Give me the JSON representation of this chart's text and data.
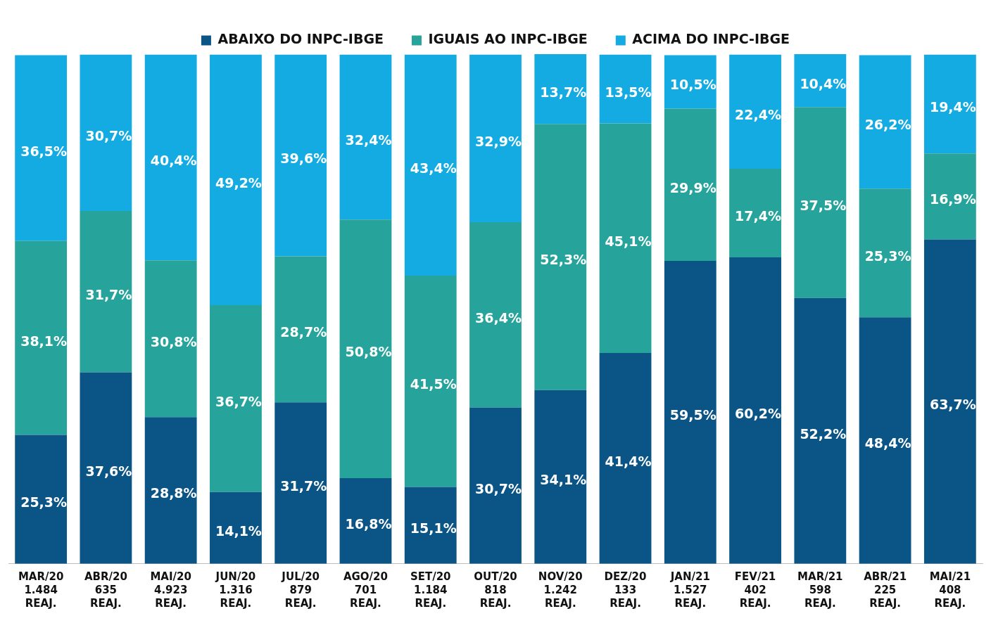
{
  "chart_data": {
    "type": "bar",
    "stacked": true,
    "legend": "top",
    "grid": false,
    "tick_labels": "x",
    "ylim": [
      0,
      100.1
    ],
    "categories": [
      "MAR/20\n1.484\nREAJ.",
      "ABR/20\n635\nREAJ.",
      "MAI/20\n4.923\nREAJ.",
      "JUN/20\n1.316\nREAJ.",
      "JUL/20\n879\nREAJ.",
      "AGO/20\n701\nREAJ.",
      "SET/20\n1.184\nREAJ.",
      "OUT/20\n818\nREAJ.",
      "NOV/20\n1.242\nREAJ.",
      "DEZ/20\n133\nREAJ.",
      "JAN/21\n1.527\nREAJ.",
      "FEV/21\n402\nREAJ.",
      "MAR/21\n598\nREAJ.",
      "ABR/21\n225\nREAJ.",
      "MAI/21\n408\nREAJ."
    ],
    "series": [
      {
        "name": "ABAIXO DO INPC-IBGE",
        "color": "#0b5486",
        "values": [
          25.3,
          37.6,
          28.8,
          14.1,
          31.7,
          16.8,
          15.1,
          30.7,
          34.1,
          41.4,
          59.5,
          60.2,
          52.2,
          48.4,
          63.7
        ],
        "value_labels": [
          "25,3%",
          "37,6%",
          "28,8%",
          "14,1%",
          "31,7%",
          "16,8%",
          "15,1%",
          "30,7%",
          "34,1%",
          "41,4%",
          "59,5%",
          "60,2%",
          "52,2%",
          "48,4%",
          "63,7%"
        ]
      },
      {
        "name": "IGUAIS AO INPC-IBGE",
        "color": "#26a39b",
        "values": [
          38.1,
          31.7,
          30.8,
          36.7,
          28.7,
          50.8,
          41.5,
          36.4,
          52.3,
          45.1,
          29.9,
          17.4,
          37.5,
          25.3,
          16.9
        ],
        "value_labels": [
          "38,1%",
          "31,7%",
          "30,8%",
          "36,7%",
          "28,7%",
          "50,8%",
          "41,5%",
          "36,4%",
          "52,3%",
          "45,1%",
          "29,9%",
          "17,4%",
          "37,5%",
          "25,3%",
          "16,9%"
        ]
      },
      {
        "name": "ACIMA DO INPC-IBGE",
        "color": "#14abe3",
        "values": [
          36.5,
          30.7,
          40.4,
          49.2,
          39.6,
          32.4,
          43.4,
          32.9,
          13.7,
          13.5,
          10.5,
          22.4,
          10.4,
          26.2,
          19.4
        ],
        "value_labels": [
          "36,5%",
          "30,7%",
          "40,4%",
          "49,2%",
          "39,6%",
          "32,4%",
          "43,4%",
          "32,9%",
          "13,7%",
          "13,5%",
          "10,5%",
          "22,4%",
          "10,4%",
          "26,2%",
          "19,4%"
        ]
      }
    ]
  }
}
